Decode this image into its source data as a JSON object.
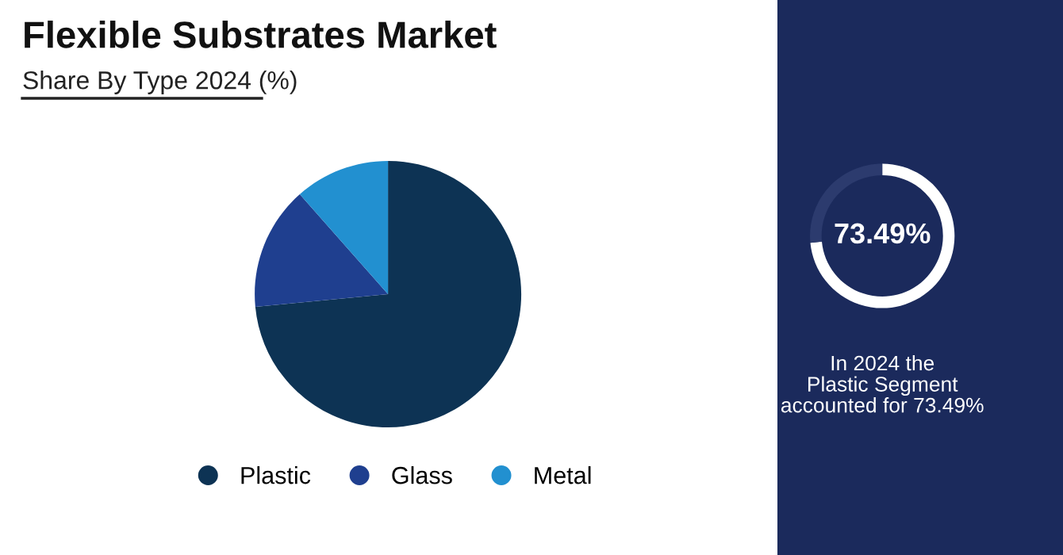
{
  "chart_data": [
    {
      "type": "pie",
      "title": "Flexible Substrates Market",
      "subtitle": "Share By Type 2024 (%)",
      "categories": [
        "Plastic",
        "Glass",
        "Metal"
      ],
      "values": [
        73.49,
        15.0,
        11.51
      ],
      "colors": [
        "#0d3354",
        "#1f3f8f",
        "#2290d0"
      ],
      "legend": "bottom"
    },
    {
      "type": "donut",
      "categories": [
        null,
        null
      ],
      "values": [
        73.49,
        26.51
      ],
      "colors": [
        "#ffffff",
        "#2c3b6e"
      ],
      "annotations": [
        "73.49%",
        "In 2024 the\nPlastic Segment\naccounted for 73.49%"
      ]
    }
  ]
}
